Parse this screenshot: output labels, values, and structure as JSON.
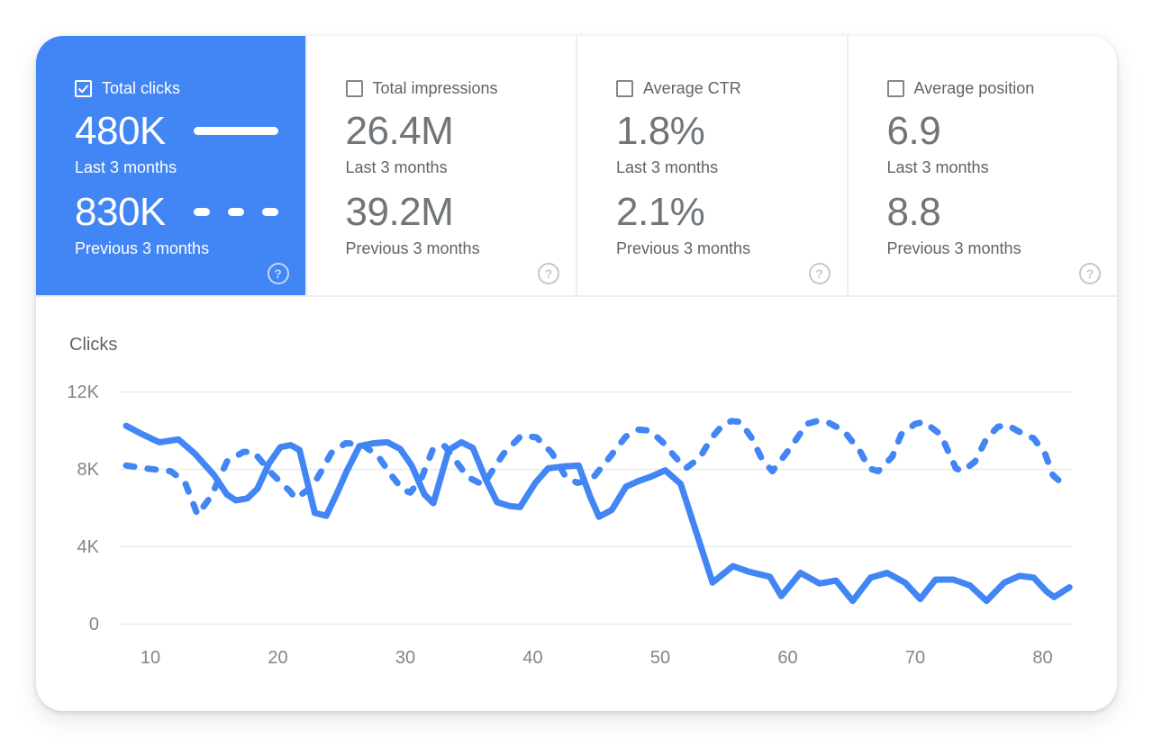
{
  "cards": [
    {
      "label": "Total clicks",
      "checked": true,
      "selected": true,
      "value_last": "480K",
      "caption_last": "Last 3 months",
      "value_prev": "830K",
      "caption_prev": "Previous 3 months"
    },
    {
      "label": "Total impressions",
      "checked": false,
      "selected": false,
      "value_last": "26.4M",
      "caption_last": "Last 3 months",
      "value_prev": "39.2M",
      "caption_prev": "Previous 3 months"
    },
    {
      "label": "Average CTR",
      "checked": false,
      "selected": false,
      "value_last": "1.8%",
      "caption_last": "Last 3 months",
      "value_prev": "2.1%",
      "caption_prev": "Previous 3 months"
    },
    {
      "label": "Average position",
      "checked": false,
      "selected": false,
      "value_last": "6.9",
      "caption_last": "Last 3 months",
      "value_prev": "8.8",
      "caption_prev": "Previous 3 months"
    }
  ],
  "icons": {
    "help_glyph": "?"
  },
  "colors": {
    "accent_blue": "#4285f4",
    "selected_card_bg": "#4285f4",
    "value_gray": "#70757a",
    "label_gray": "#5f6368",
    "axis_gray": "#80868b",
    "gridline": "#e8eaed"
  },
  "chart_data": {
    "type": "line",
    "title": "Clicks",
    "ylabel": "Clicks",
    "xlabel": "",
    "grid": true,
    "legend_position": "none",
    "x_axis": {
      "ticks": [
        "10",
        "20",
        "30",
        "40",
        "50",
        "60",
        "70",
        "80"
      ],
      "tick_values": [
        10,
        20,
        30,
        40,
        50,
        60,
        70,
        80
      ],
      "range": [
        7.6,
        82.3
      ]
    },
    "y_axis": {
      "ticks": [
        "12K",
        "8K",
        "4K",
        "0"
      ],
      "tick_values": [
        12000,
        8000,
        4000,
        0
      ],
      "range": [
        0,
        13000
      ]
    },
    "series": [
      {
        "name": "Last 3 months",
        "style": "solid",
        "color": "#4285f4",
        "x": [
          8.1,
          9.4,
          10.7,
          12.2,
          13.5,
          15.0,
          16.0,
          16.7,
          17.6,
          18.4,
          19.3,
          20.2,
          21.0,
          21.7,
          22.9,
          23.8,
          24.6,
          25.4,
          26.4,
          27.5,
          28.6,
          29.6,
          30.5,
          31.5,
          32.2,
          33.4,
          34.4,
          35.3,
          36.3,
          37.2,
          38.2,
          39.0,
          40.2,
          41.2,
          42.4,
          43.6,
          44.5,
          45.2,
          46.2,
          47.3,
          48.3,
          49.2,
          50.4,
          51.6,
          54.1,
          55.7,
          57.0,
          58.6,
          59.5,
          61.0,
          62.5,
          63.8,
          65.1,
          66.5,
          67.8,
          69.2,
          70.4,
          71.6,
          73.0,
          74.3,
          75.6,
          77.0,
          78.2,
          79.3,
          80.3,
          80.9,
          82.1
        ],
        "y": [
          10250,
          9800,
          9400,
          9550,
          8800,
          7700,
          6700,
          6400,
          6500,
          7000,
          8300,
          9150,
          9250,
          9000,
          5750,
          5600,
          6700,
          7900,
          9200,
          9350,
          9400,
          9050,
          8200,
          6700,
          6250,
          9000,
          9400,
          9100,
          7500,
          6300,
          6100,
          6050,
          7300,
          8050,
          8150,
          8200,
          6600,
          5550,
          5900,
          7100,
          7400,
          7600,
          7950,
          7250,
          2150,
          3000,
          2700,
          2450,
          1450,
          2650,
          2100,
          2250,
          1200,
          2400,
          2650,
          2150,
          1300,
          2300,
          2300,
          2000,
          1200,
          2150,
          2500,
          2400,
          1700,
          1400,
          1900
        ]
      },
      {
        "name": "Previous 3 months",
        "style": "dashed",
        "color": "#4285f4",
        "x": [
          8.1,
          9.6,
          11.6,
          12.7,
          13.7,
          14.8,
          16.0,
          17.3,
          18.1,
          19.5,
          20.9,
          21.4,
          22.7,
          23.4,
          24.2,
          25.3,
          26.6,
          27.9,
          28.9,
          29.8,
          30.4,
          31.3,
          32.2,
          33.1,
          34.9,
          36.1,
          37.7,
          39.1,
          40.3,
          41.5,
          42.6,
          43.5,
          44.6,
          46.0,
          47.3,
          48.3,
          49.2,
          50.2,
          51.1,
          52.0,
          53.1,
          54.0,
          54.9,
          55.6,
          56.3,
          57.2,
          58.0,
          58.8,
          60.2,
          61.5,
          62.3,
          63.1,
          64.4,
          65.7,
          66.4,
          67.1,
          68.2,
          68.9,
          70.0,
          70.7,
          72.0,
          73.2,
          73.7,
          74.7,
          75.6,
          76.5,
          77.2,
          78.3,
          79.3,
          80.2,
          80.8,
          81.4,
          82.1
        ],
        "y": [
          8200,
          8050,
          7900,
          7350,
          5650,
          6650,
          8400,
          8900,
          8900,
          7800,
          6900,
          6500,
          7100,
          7900,
          8850,
          9350,
          9300,
          8650,
          7700,
          6950,
          6800,
          7600,
          9100,
          9200,
          7600,
          7200,
          8800,
          9750,
          9650,
          8850,
          7600,
          7300,
          7450,
          8600,
          9700,
          10050,
          10000,
          9400,
          8700,
          8050,
          8600,
          9600,
          10300,
          10500,
          10450,
          9600,
          8500,
          7900,
          9100,
          10350,
          10500,
          10450,
          10000,
          8900,
          8050,
          7900,
          8650,
          9800,
          10350,
          10450,
          9800,
          8050,
          7900,
          8400,
          9600,
          10200,
          10300,
          9900,
          9600,
          8800,
          7700,
          7350,
          7600
        ]
      }
    ]
  }
}
